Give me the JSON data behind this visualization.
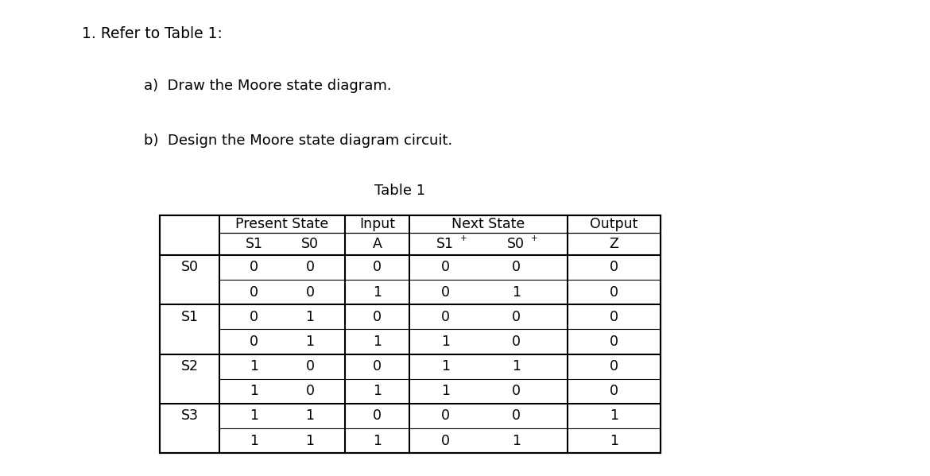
{
  "title_line1": "1. Refer to Table 1:",
  "subtitle_a": "a)  Draw the Moore state diagram.",
  "subtitle_b": "b)  Design the Moore state diagram circuit.",
  "table_title": "Table 1",
  "rows": [
    [
      "S0",
      "0",
      "0",
      "0",
      "0",
      "0",
      "0"
    ],
    [
      "",
      "0",
      "0",
      "1",
      "0",
      "1",
      "0"
    ],
    [
      "S1",
      "0",
      "1",
      "0",
      "0",
      "0",
      "0"
    ],
    [
      "",
      "0",
      "1",
      "1",
      "1",
      "0",
      "0"
    ],
    [
      "S2",
      "1",
      "0",
      "0",
      "1",
      "1",
      "0"
    ],
    [
      "",
      "1",
      "0",
      "1",
      "1",
      "0",
      "0"
    ],
    [
      "S3",
      "1",
      "1",
      "0",
      "0",
      "0",
      "1"
    ],
    [
      "",
      "1",
      "1",
      "1",
      "0",
      "1",
      "1"
    ]
  ],
  "bg_color": "#ffffff",
  "border_color": "#1a1a1a",
  "text_color": "#000000",
  "font_family": "DejaVu Sans"
}
